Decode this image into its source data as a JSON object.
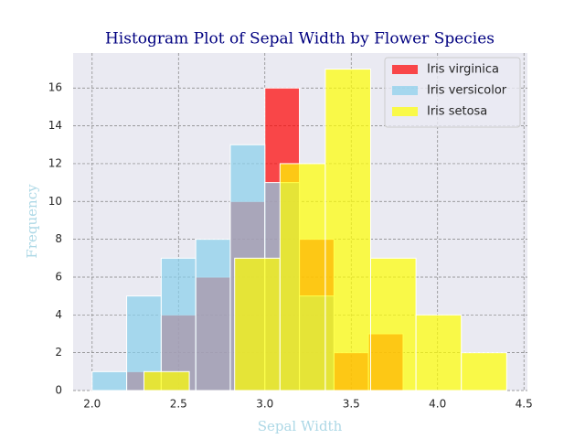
{
  "chart_data": {
    "type": "histogram",
    "title": "Histogram Plot of Sepal Width by Flower Species",
    "xlabel": "Sepal Width",
    "ylabel": "Frequency",
    "series": [
      {
        "name": "Iris virginica",
        "color": "#ff0000",
        "bins": [
          2.2,
          2.4,
          2.6,
          2.8,
          3.0,
          3.2,
          3.4,
          3.6,
          3.8
        ],
        "values": [
          1,
          4,
          6,
          10,
          16,
          8,
          2,
          3
        ]
      },
      {
        "name": "Iris versicolor",
        "color": "#87ceeb",
        "bins": [
          2.0,
          2.2,
          2.4,
          2.6,
          2.8,
          3.0,
          3.2,
          3.4
        ],
        "values": [
          1,
          5,
          7,
          8,
          13,
          11,
          5
        ]
      },
      {
        "name": "Iris setosa",
        "color": "#ffff00",
        "bins": [
          2.3,
          2.5625,
          2.825,
          3.0875,
          3.35,
          3.6125,
          3.875,
          4.1375,
          4.4
        ],
        "values": [
          1,
          0,
          7,
          12,
          17,
          7,
          4,
          2
        ]
      }
    ],
    "opacity": 0.7,
    "xlim": [
      1.89,
      4.52
    ],
    "ylim": [
      0,
      17.85
    ],
    "xticks": [
      {
        "value": 2,
        "label": "2.0"
      },
      2.5,
      {
        "value": 3,
        "label": "3.0"
      },
      3.5,
      {
        "value": 4,
        "label": "4.0"
      },
      4.5
    ],
    "yticks": [
      0,
      2,
      4,
      6,
      8,
      10,
      12,
      14,
      16
    ],
    "grid": true,
    "legend": "upper right"
  }
}
